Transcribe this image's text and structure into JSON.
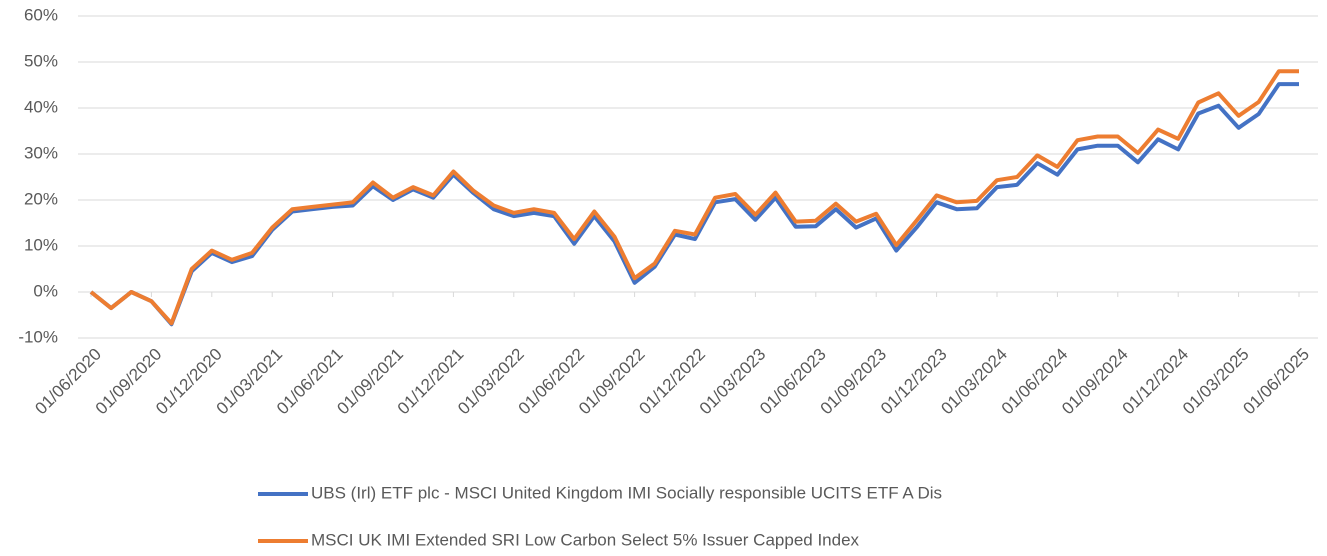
{
  "chart_data": {
    "type": "line",
    "categories": [
      "01/06/2020",
      null,
      null,
      "01/09/2020",
      null,
      null,
      "01/12/2020",
      null,
      null,
      "01/03/2021",
      null,
      null,
      "01/06/2021",
      null,
      null,
      "01/09/2021",
      null,
      null,
      "01/12/2021",
      null,
      null,
      "01/03/2022",
      null,
      null,
      "01/06/2022",
      null,
      null,
      "01/09/2022",
      null,
      null,
      "01/12/2022",
      null,
      null,
      "01/03/2023",
      null,
      null,
      "01/06/2023",
      null,
      null,
      "01/09/2023",
      null,
      null,
      "01/12/2023",
      null,
      null,
      "01/03/2024",
      null,
      null,
      "01/06/2024",
      null,
      null,
      "01/09/2024",
      null,
      null,
      "01/12/2024",
      null,
      null,
      "01/03/2025",
      null,
      null,
      "01/06/2025"
    ],
    "series": [
      {
        "name": "UBS (Irl) ETF plc - MSCI United Kingdom IMI Socially responsible UCITS ETF A Dis",
        "color": "#4472c4",
        "values": [
          0,
          -3.5,
          0,
          -2,
          -7,
          4.5,
          8.5,
          6.5,
          7.8,
          13.5,
          17.5,
          18,
          18.5,
          18.8,
          23,
          20,
          22.3,
          20.5,
          25.5,
          21.5,
          18,
          16.5,
          17.2,
          16.5,
          10.5,
          16.5,
          11,
          2,
          5.5,
          12.5,
          11.5,
          19.5,
          20.2,
          15.7,
          20.5,
          14.2,
          14.3,
          18,
          14,
          16,
          9,
          14,
          19.5,
          18,
          18.2,
          22.8,
          23.3,
          28,
          25.5,
          31,
          31.8,
          31.8,
          28.2,
          33.2,
          31,
          38.8,
          40.5,
          35.7,
          38.7,
          45.2,
          45.2
        ]
      },
      {
        "name": "MSCI UK IMI Extended SRI Low Carbon Select 5% Issuer Capped Index",
        "color": "#ed7d31",
        "values": [
          0,
          -3.5,
          0,
          -2,
          -6.8,
          5,
          9,
          7,
          8.5,
          14,
          18,
          18.5,
          19,
          19.5,
          23.8,
          20.5,
          22.8,
          21,
          26.2,
          22,
          18.8,
          17.2,
          18,
          17.2,
          11.5,
          17.5,
          12,
          3,
          6.2,
          13.3,
          12.5,
          20.5,
          21.3,
          16.8,
          21.6,
          15.3,
          15.5,
          19.2,
          15.3,
          17,
          10.2,
          15.5,
          21,
          19.5,
          19.8,
          24.3,
          25,
          29.7,
          27.2,
          33,
          33.8,
          33.8,
          30.2,
          35.3,
          33.3,
          41.2,
          43.2,
          38.3,
          41.3,
          48,
          48
        ]
      }
    ],
    "ylim": [
      -10,
      60
    ],
    "yticks": [
      {
        "value": -10,
        "label": "-10%"
      },
      {
        "value": 0,
        "label": "0%"
      },
      {
        "value": 10,
        "label": "10%"
      },
      {
        "value": 20,
        "label": "20%"
      },
      {
        "value": 30,
        "label": "30%"
      },
      {
        "value": 40,
        "label": "40%"
      },
      {
        "value": 50,
        "label": "50%"
      },
      {
        "value": 60,
        "label": "60%"
      }
    ],
    "grid": true
  }
}
